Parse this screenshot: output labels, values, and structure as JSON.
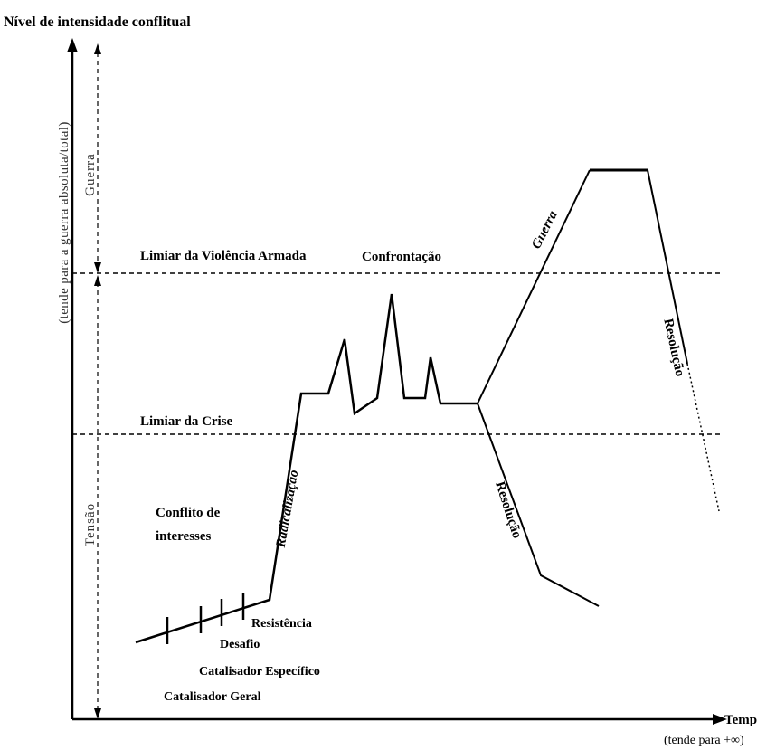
{
  "diagram": {
    "y_axis_title": "Nível de intensidade conflitual",
    "y_axis_note": "(tende para a guerra absoluta/total)",
    "x_axis_title": "Tempo",
    "x_axis_note": "(tende para +∞)",
    "zones": {
      "upper": "Guerra",
      "lower": "Tensão"
    },
    "thresholds": {
      "armed_violence": "Limiar da Violência Armada",
      "crisis": "Limiar da Crise"
    },
    "region_label": {
      "line1": "Conflito de",
      "line2": "interesses"
    },
    "stages": {
      "radicalization": "Radicalização",
      "confrontation": "Confrontação",
      "war": "Guerra",
      "resolution_low": "Resolução",
      "resolution_high": "Resolução"
    },
    "markers": {
      "general_catalyst": "Catalisador Geral",
      "specific_catalyst": "Catalisador Específico",
      "challenge": "Desafio",
      "resistance": "Resistência"
    }
  }
}
